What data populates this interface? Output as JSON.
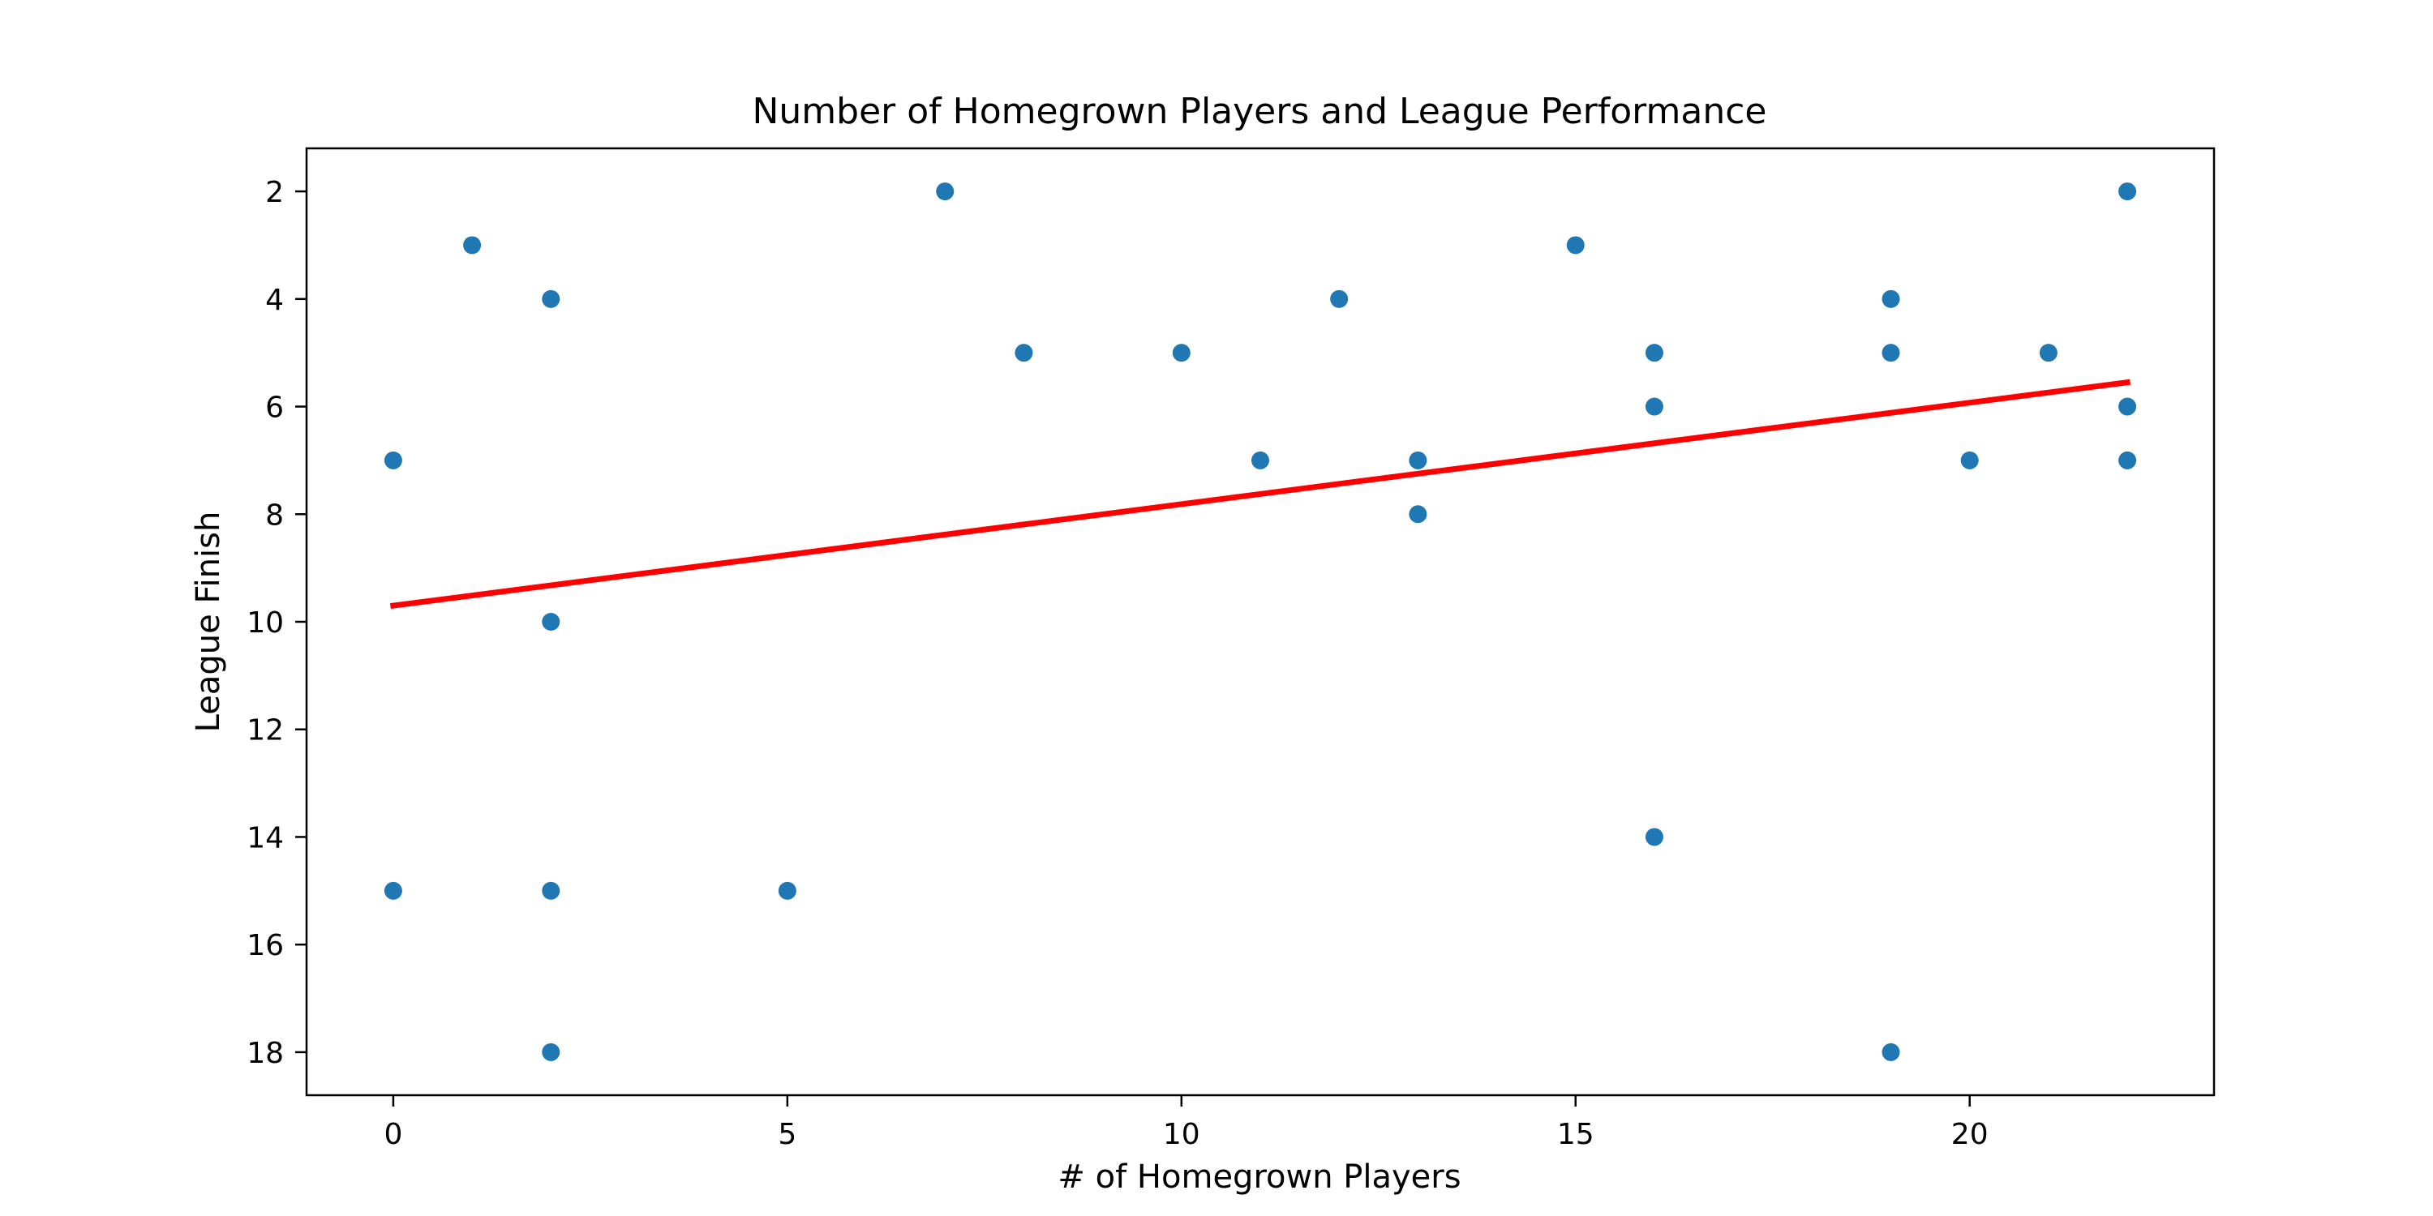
{
  "chart_data": {
    "type": "scatter",
    "title": "Number of Homegrown Players and League Performance",
    "xlabel": "# of Homegrown Players",
    "ylabel": "League Finish",
    "xlim": [
      -1.1,
      23.1
    ],
    "ylim": [
      18.8,
      1.2
    ],
    "y_inverted": true,
    "grid": false,
    "xticks": [
      0,
      5,
      10,
      15,
      20
    ],
    "yticks": [
      2,
      4,
      6,
      8,
      10,
      12,
      14,
      16,
      18
    ],
    "points": [
      {
        "x": 0,
        "y": 7
      },
      {
        "x": 0,
        "y": 15
      },
      {
        "x": 1,
        "y": 3
      },
      {
        "x": 2,
        "y": 4
      },
      {
        "x": 2,
        "y": 10
      },
      {
        "x": 2,
        "y": 15
      },
      {
        "x": 2,
        "y": 18
      },
      {
        "x": 5,
        "y": 15
      },
      {
        "x": 7,
        "y": 2
      },
      {
        "x": 8,
        "y": 5
      },
      {
        "x": 10,
        "y": 5
      },
      {
        "x": 11,
        "y": 7
      },
      {
        "x": 12,
        "y": 4
      },
      {
        "x": 13,
        "y": 7
      },
      {
        "x": 13,
        "y": 8
      },
      {
        "x": 15,
        "y": 3
      },
      {
        "x": 16,
        "y": 5
      },
      {
        "x": 16,
        "y": 6
      },
      {
        "x": 16,
        "y": 14
      },
      {
        "x": 19,
        "y": 4
      },
      {
        "x": 19,
        "y": 5
      },
      {
        "x": 19,
        "y": 18
      },
      {
        "x": 20,
        "y": 7
      },
      {
        "x": 21,
        "y": 5
      },
      {
        "x": 22,
        "y": 2
      },
      {
        "x": 22,
        "y": 6
      },
      {
        "x": 22,
        "y": 7
      }
    ],
    "trendline": {
      "x": [
        0,
        22
      ],
      "y": [
        9.7,
        5.55
      ]
    },
    "colors": {
      "points": "#1f77b4",
      "trendline": "#ff0000"
    }
  }
}
